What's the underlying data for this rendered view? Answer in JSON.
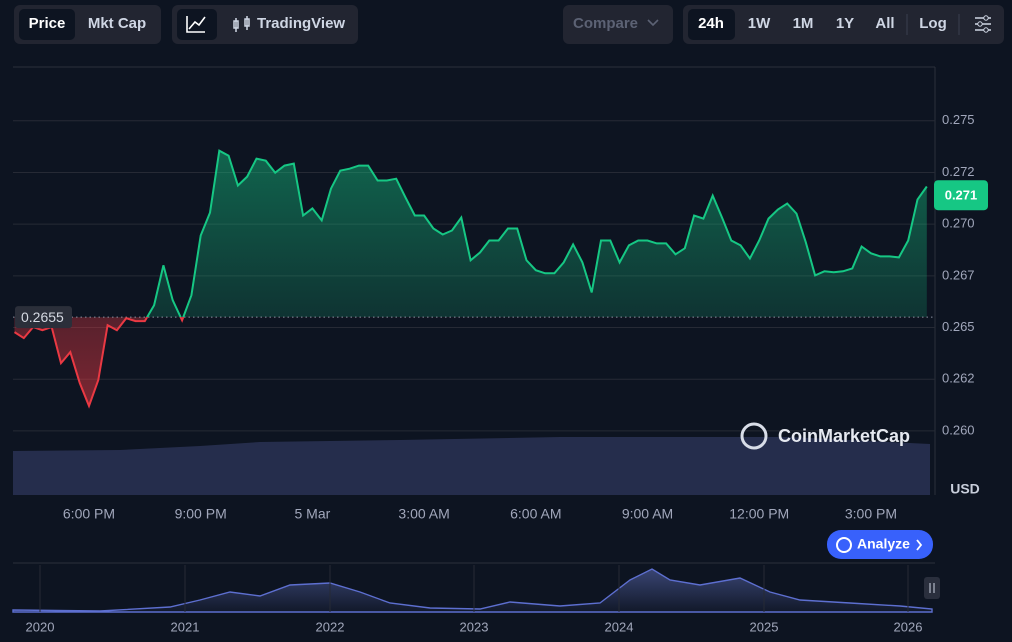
{
  "toolbar": {
    "price": "Price",
    "mkt_cap": "Mkt Cap",
    "tradingview": "TradingView",
    "compare": "Compare",
    "ranges": [
      "24h",
      "1W",
      "1M",
      "1Y",
      "All"
    ],
    "log": "Log"
  },
  "chart_data": {
    "type": "line",
    "x": [
      16,
      16.25,
      16.5,
      16.75,
      17,
      17.25,
      17.5,
      17.75,
      18,
      18.25,
      18.5,
      18.75,
      19,
      19.25,
      19.5,
      19.75,
      20,
      20.25,
      20.5,
      20.75,
      21,
      21.25,
      21.5,
      21.75,
      22,
      22.25,
      22.5,
      22.75,
      23,
      23.25,
      23.5,
      23.75,
      24,
      24.25,
      24.5,
      24.75,
      25,
      25.25,
      25.5,
      25.75,
      26,
      26.25,
      26.5,
      26.75,
      27,
      27.25,
      27.5,
      27.75,
      28,
      28.25,
      28.5,
      28.75,
      29,
      29.25,
      29.5,
      29.75,
      30,
      30.25,
      30.5,
      30.75,
      31,
      31.25,
      31.5,
      31.75,
      32,
      32.25,
      32.5,
      32.75,
      33,
      33.25,
      33.5,
      33.75,
      34,
      34.25,
      34.5,
      34.75,
      35,
      35.25,
      35.5,
      35.75,
      36,
      36.25,
      36.5,
      36.75,
      37,
      37.25,
      37.5,
      37.75,
      38,
      38.25,
      38.5,
      38.75,
      39,
      39.25,
      39.5,
      39.75,
      40,
      40.25,
      40.5
    ],
    "series": [
      {
        "name": "Price",
        "up_color": "#16c784",
        "down_color": "#ea3943",
        "values": [
          0.26478,
          0.26449,
          0.26502,
          0.26487,
          0.26502,
          0.26328,
          0.26381,
          0.26232,
          0.26121,
          0.26246,
          0.26511,
          0.26487,
          0.26545,
          0.26531,
          0.26531,
          0.26608,
          0.26801,
          0.26632,
          0.26535,
          0.26656,
          0.26945,
          0.27056,
          0.27355,
          0.27331,
          0.27187,
          0.2723,
          0.27317,
          0.27307,
          0.27249,
          0.27283,
          0.27293,
          0.27042,
          0.27076,
          0.27018,
          0.27172,
          0.27259,
          0.27268,
          0.27283,
          0.27283,
          0.27211,
          0.27211,
          0.2722,
          0.27129,
          0.27042,
          0.27042,
          0.26979,
          0.2695,
          0.26969,
          0.27032,
          0.26825,
          0.26863,
          0.26921,
          0.26921,
          0.26979,
          0.26979,
          0.26825,
          0.26777,
          0.26762,
          0.26762,
          0.26815,
          0.26902,
          0.26815,
          0.2667,
          0.26921,
          0.26921,
          0.26815,
          0.26897,
          0.26921,
          0.26921,
          0.26907,
          0.26907,
          0.26854,
          0.26883,
          0.27042,
          0.27027,
          0.27138,
          0.27032,
          0.26921,
          0.26897,
          0.26834,
          0.26921,
          0.27027,
          0.27071,
          0.271,
          0.27051,
          0.26912,
          0.26752,
          0.26772,
          0.26767,
          0.26772,
          0.26786,
          0.26892,
          0.26859,
          0.26844,
          0.26844,
          0.26839,
          0.26921,
          0.27119,
          0.27182
        ]
      }
    ],
    "baseline": 0.2655,
    "current_price": 0.2714,
    "current_price_label": "0.271",
    "xlim": [
      15.96,
      40.72
    ],
    "xticks": [
      {
        "value": 18,
        "label": "6:00 PM"
      },
      {
        "value": 21,
        "label": "9:00 PM"
      },
      {
        "value": 24,
        "label": "5 Mar"
      },
      {
        "value": 27,
        "label": "3:00 AM"
      },
      {
        "value": 30,
        "label": "6:00 AM"
      },
      {
        "value": 33,
        "label": "9:00 AM"
      },
      {
        "value": 36,
        "label": "12:00 PM"
      },
      {
        "value": 39,
        "label": "3:00 PM"
      }
    ],
    "ylim": [
      0.2569,
      0.2776
    ],
    "yticks": [
      {
        "value": 0.26,
        "label": "0.260"
      },
      {
        "value": 0.2625,
        "label": "0.262"
      },
      0.265,
      {
        "value": 0.2675,
        "label": "0.267"
      },
      {
        "value": 0.27,
        "label": "0.270"
      },
      {
        "value": 0.2725,
        "label": "0.272"
      },
      0.275
    ],
    "y_unit": "USD",
    "grid": true,
    "watermark": "CoinMarketCap",
    "analyze": "Analyze"
  },
  "overview": {
    "years": [
      "2020",
      "2021",
      "2022",
      "2023",
      "2024",
      "2025",
      "2026"
    ]
  }
}
